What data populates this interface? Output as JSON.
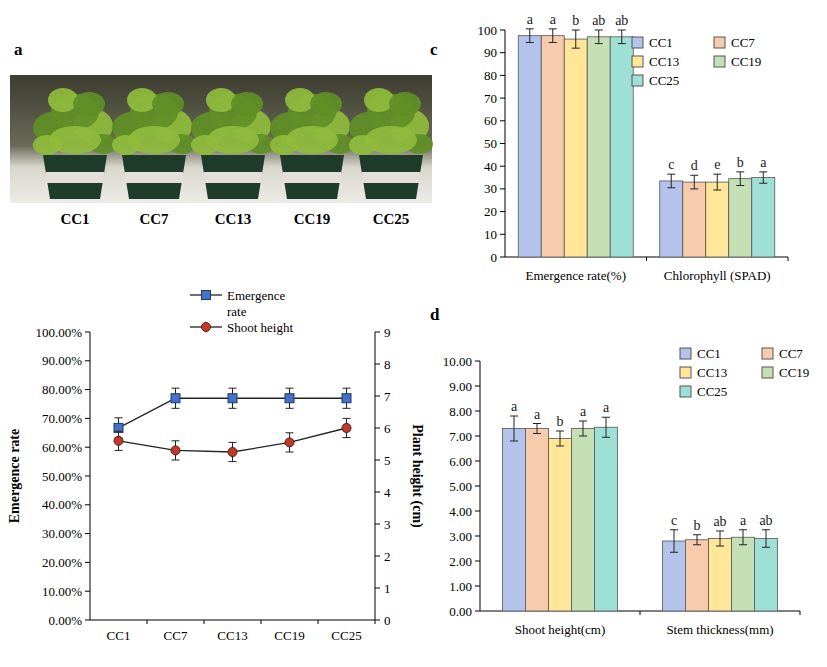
{
  "photo": {
    "panel_label": "a",
    "labels": [
      "CC1",
      "CC7",
      "CC13",
      "CC19",
      "CC25"
    ]
  },
  "chart_data": [
    {
      "type": "line",
      "categories": [
        "CC1",
        "CC7",
        "CC13",
        "CC19",
        "CC25"
      ],
      "y_label": "Emergence rate",
      "y2_label": "Plant height (cm)",
      "legend": "top",
      "ylim": [
        0,
        100
      ],
      "yticks": [
        {
          "value": 0,
          "label": "0.00%"
        },
        {
          "value": 10,
          "label": "10.00%"
        },
        {
          "value": 20,
          "label": "20.00%"
        },
        {
          "value": 30,
          "label": "30.00%"
        },
        {
          "value": 40,
          "label": "40.00%"
        },
        {
          "value": 50,
          "label": "50.00%"
        },
        {
          "value": 60,
          "label": "60.00%"
        },
        {
          "value": 70,
          "label": "70.00%"
        },
        {
          "value": 80,
          "label": "80.00%"
        },
        {
          "value": 90,
          "label": "90.00%"
        },
        {
          "value": 100,
          "label": "100.00%"
        }
      ],
      "y2lim": [
        0,
        9
      ],
      "y2ticks": [
        0,
        1,
        2,
        3,
        4,
        5,
        6,
        7,
        8,
        9
      ],
      "series": [
        {
          "name": "Emergence rate",
          "color": "#4472c4",
          "marker": "square",
          "values": [
            66.7,
            77,
            77,
            77,
            77
          ],
          "errors": [
            3.5,
            3.5,
            3.5,
            3.5,
            3.5
          ]
        },
        {
          "name": "Shoot height",
          "color": "#c0392b",
          "marker": "circle",
          "axis": "y2",
          "values": [
            5.6,
            5.3,
            5.25,
            5.55,
            6.0
          ],
          "errors": [
            0.3,
            0.3,
            0.3,
            0.3,
            0.3
          ]
        }
      ]
    },
    {
      "type": "bar",
      "panel_label": "c",
      "categories": [
        "Emergence rate(%)",
        "Chlorophyll (SPAD)"
      ],
      "legend": "top-right",
      "ylim": [
        0,
        100
      ],
      "yticks": [
        0,
        10,
        20,
        30,
        40,
        50,
        60,
        70,
        80,
        90,
        100
      ],
      "series": [
        {
          "name": "CC1",
          "color": "#b4c3ec",
          "values": [
            97.5,
            33.5
          ],
          "errors": [
            3,
            3
          ],
          "letters": [
            "a",
            "c"
          ]
        },
        {
          "name": "CC7",
          "color": "#f8cbad",
          "values": [
            97.5,
            33
          ],
          "errors": [
            3,
            3
          ],
          "letters": [
            "a",
            "d"
          ]
        },
        {
          "name": "CC13",
          "color": "#ffe699",
          "values": [
            96,
            33
          ],
          "errors": [
            4,
            3.5
          ],
          "letters": [
            "b",
            "e"
          ]
        },
        {
          "name": "CC19",
          "color": "#c5e0b4",
          "values": [
            97,
            34.5
          ],
          "errors": [
            3,
            3
          ],
          "letters": [
            "ab",
            "b"
          ]
        },
        {
          "name": "CC25",
          "color": "#9fe0d6",
          "values": [
            97,
            35
          ],
          "errors": [
            3,
            2.5
          ],
          "letters": [
            "ab",
            "a"
          ]
        }
      ]
    },
    {
      "type": "bar",
      "panel_label": "d",
      "categories": [
        "Shoot height(cm)",
        "Stem thickness(mm)"
      ],
      "legend": "top-right",
      "ylim": [
        0,
        10
      ],
      "yticks": [
        {
          "value": 0,
          "label": "0.00"
        },
        {
          "value": 1,
          "label": "1.00"
        },
        {
          "value": 2,
          "label": "2.00"
        },
        {
          "value": 3,
          "label": "3.00"
        },
        {
          "value": 4,
          "label": "4.00"
        },
        {
          "value": 5,
          "label": "5.00"
        },
        {
          "value": 6,
          "label": "6.00"
        },
        {
          "value": 7,
          "label": "7.00"
        },
        {
          "value": 8,
          "label": "8.00"
        },
        {
          "value": 9,
          "label": "9.00"
        },
        {
          "value": 10,
          "label": "10.00"
        }
      ],
      "series": [
        {
          "name": "CC1",
          "color": "#b4c3ec",
          "values": [
            7.3,
            2.8
          ],
          "errors": [
            0.5,
            0.45
          ],
          "letters": [
            "a",
            "c"
          ]
        },
        {
          "name": "CC7",
          "color": "#f8cbad",
          "values": [
            7.3,
            2.85
          ],
          "errors": [
            0.2,
            0.2
          ],
          "letters": [
            "a",
            "b"
          ]
        },
        {
          "name": "CC13",
          "color": "#ffe699",
          "values": [
            6.9,
            2.9
          ],
          "errors": [
            0.3,
            0.3
          ],
          "letters": [
            "b",
            "ab"
          ]
        },
        {
          "name": "CC19",
          "color": "#c5e0b4",
          "values": [
            7.3,
            2.95
          ],
          "errors": [
            0.3,
            0.3
          ],
          "letters": [
            "a",
            "a"
          ]
        },
        {
          "name": "CC25",
          "color": "#9fe0d6",
          "values": [
            7.35,
            2.9
          ],
          "errors": [
            0.4,
            0.35
          ],
          "letters": [
            "a",
            "ab"
          ]
        }
      ]
    }
  ]
}
